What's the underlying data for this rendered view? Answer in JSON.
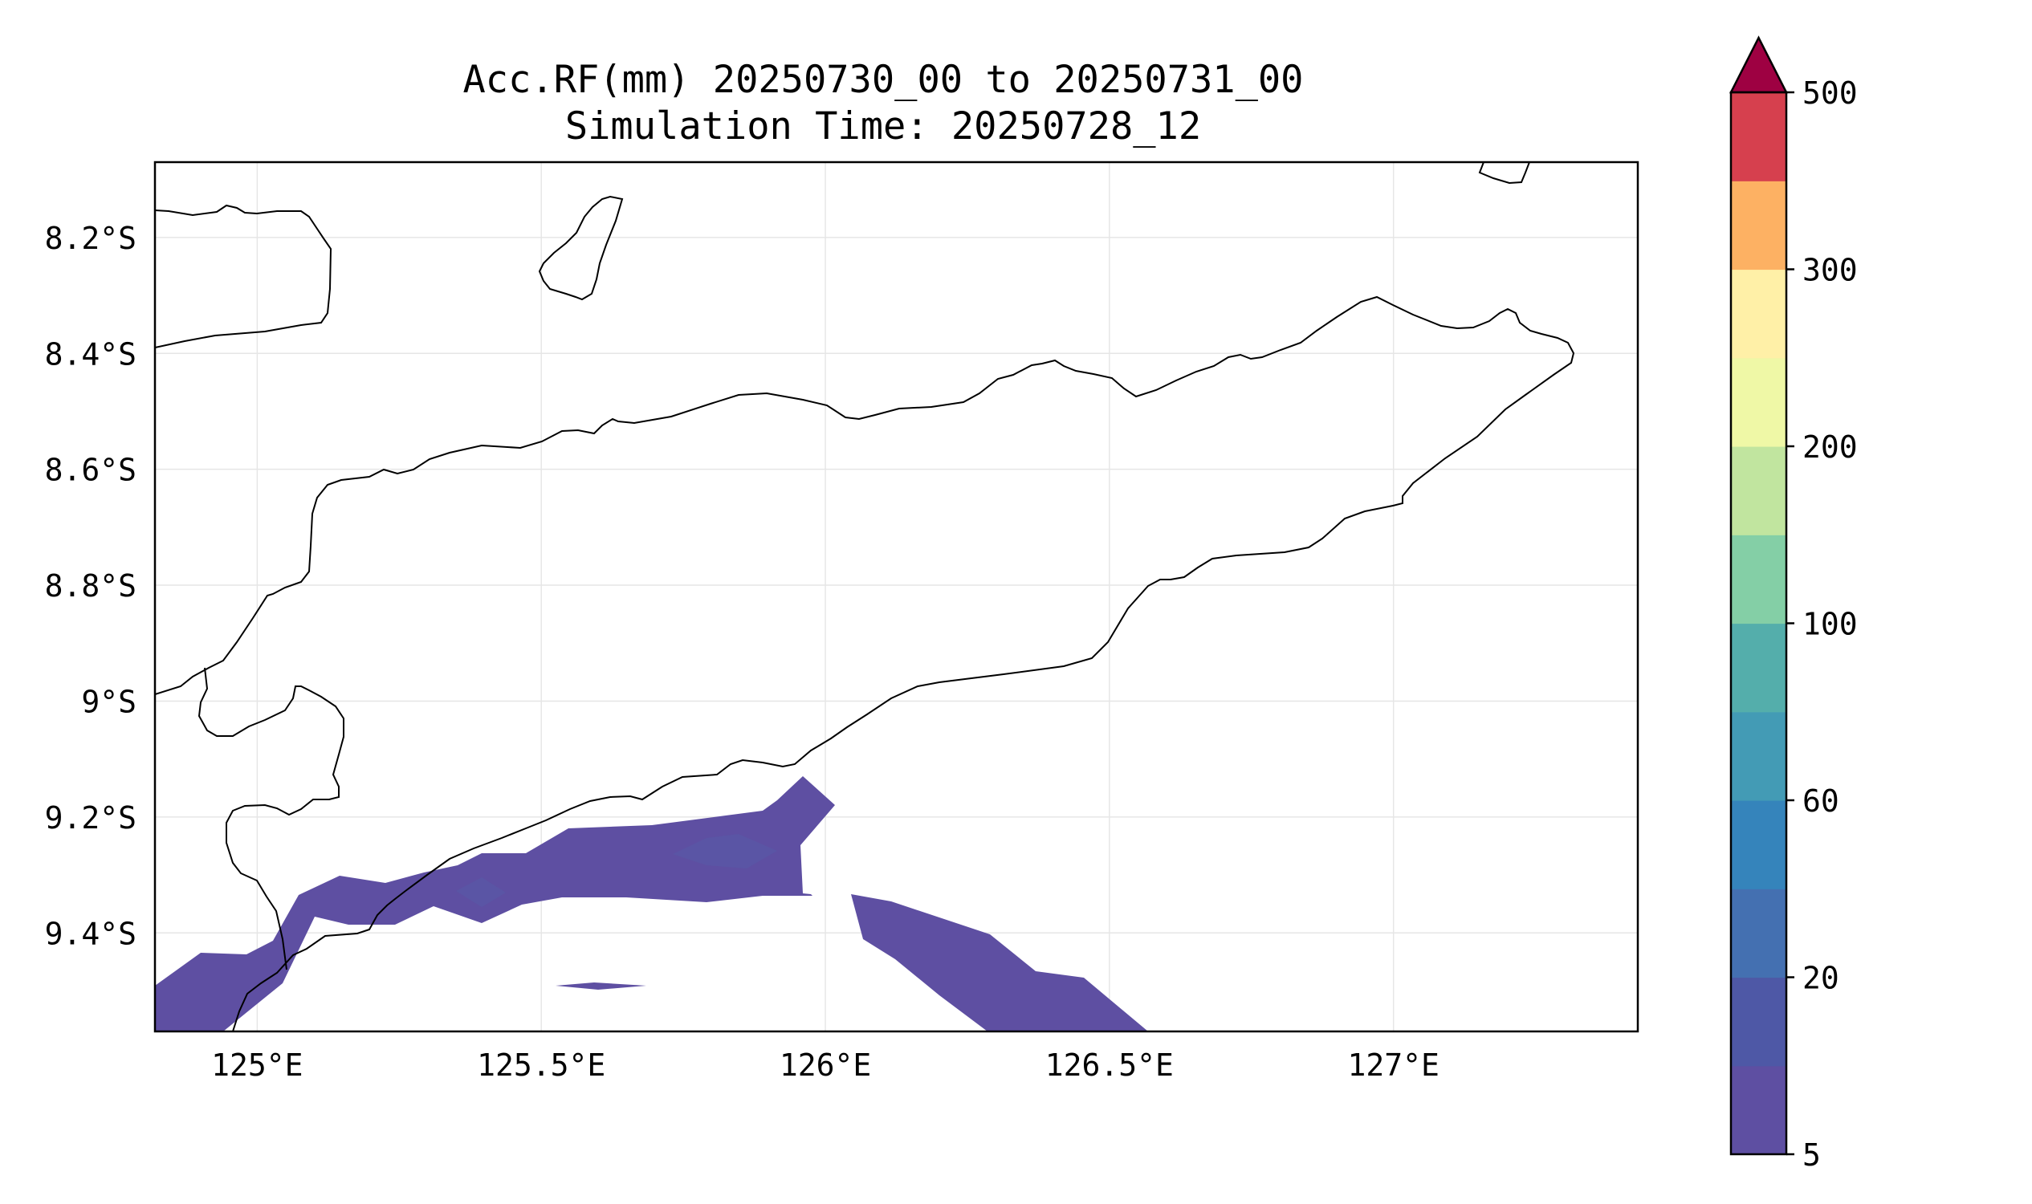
{
  "title": {
    "line1": "Acc.RF(mm) 20250730_00 to 20250731_00",
    "line2": "Simulation Time: 20250728_12"
  },
  "map": {
    "lon_range": [
      124.82,
      127.43
    ],
    "lat_range": [
      -9.57,
      -8.07
    ],
    "lat_ticks": [
      {
        "value": -8.2,
        "label": "8.2°S"
      },
      {
        "value": -8.4,
        "label": "8.4°S"
      },
      {
        "value": -8.6,
        "label": "8.6°S"
      },
      {
        "value": -8.8,
        "label": "8.8°S"
      },
      {
        "value": -9.0,
        "label": "9°S"
      },
      {
        "value": -9.2,
        "label": "9.2°S"
      },
      {
        "value": -9.4,
        "label": "9.4°S"
      }
    ],
    "lon_ticks": [
      {
        "value": 125.0,
        "label": "125°E"
      },
      {
        "value": 125.5,
        "label": "125.5°E"
      },
      {
        "value": 126.0,
        "label": "126°E"
      },
      {
        "value": 126.5,
        "label": "126.5°E"
      },
      {
        "value": 127.0,
        "label": "127°E"
      }
    ],
    "grid": true,
    "coastline_color": "#000000",
    "rain_color_5_10": "#5e4fa2",
    "rain_color_10_20": "#5a55a5"
  },
  "colorbar": {
    "levels": [
      5,
      10,
      20,
      40,
      60,
      80,
      100,
      150,
      200,
      250,
      300,
      400,
      500
    ],
    "colors": [
      "#5e4fa2",
      "#4e58a6",
      "#4470b1",
      "#3584bb",
      "#439bb5",
      "#54aeab",
      "#84cfa6",
      "#c1e59f",
      "#eff8a6",
      "#fff0a7",
      "#fdb163",
      "#d6404e"
    ],
    "extend_color": "#9e0142",
    "tick_labels": [
      {
        "level": 5,
        "label": "5"
      },
      {
        "level": 20,
        "label": "20"
      },
      {
        "level": 60,
        "label": "60"
      },
      {
        "level": 100,
        "label": "100"
      },
      {
        "level": 200,
        "label": "200"
      },
      {
        "level": 300,
        "label": "300"
      },
      {
        "level": 500,
        "label": "500"
      }
    ]
  }
}
